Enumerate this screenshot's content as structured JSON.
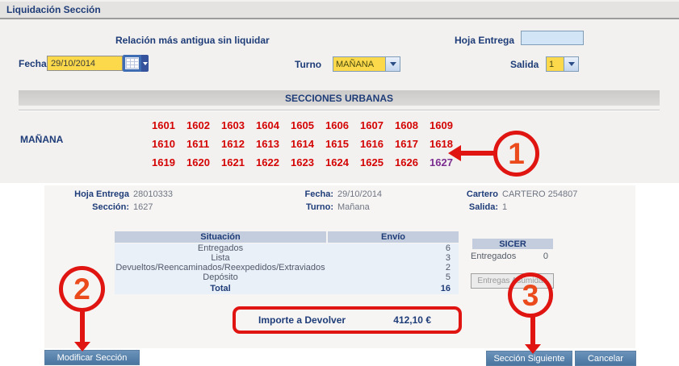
{
  "page": {
    "title": "Liquidación Sección"
  },
  "filters": {
    "relation_label": "Relación más antigua sin liquidar",
    "hoja_entrega_label": "Hoja Entrega",
    "hoja_entrega_value": "",
    "fecha_label": "Fecha",
    "fecha_value": "29/10/2014",
    "turno_label": "Turno",
    "turno_value": "MAÑANA",
    "salida_label": "Salida",
    "salida_value": "1"
  },
  "secciones": {
    "header": "SECCIONES URBANAS",
    "shift_label": "MAÑANA",
    "rows": [
      [
        "1601",
        "1602",
        "1603",
        "1604",
        "1605",
        "1606",
        "1607",
        "1608",
        "1609"
      ],
      [
        "1610",
        "1611",
        "1612",
        "1613",
        "1614",
        "1615",
        "1616",
        "1617",
        "1618"
      ],
      [
        "1619",
        "1620",
        "1621",
        "1622",
        "1623",
        "1624",
        "1625",
        "1626",
        "1627"
      ]
    ],
    "selected": "1627"
  },
  "detail": {
    "hoja_entrega_label": "Hoja Entrega",
    "hoja_entrega_value": "28010333",
    "seccion_label": "Sección:",
    "seccion_value": "1627",
    "fecha_label": "Fecha:",
    "fecha_value": "29/10/2014",
    "turno_label": "Turno:",
    "turno_value": "Mañana",
    "cartero_label": "Cartero",
    "cartero_value": "CARTERO 254807",
    "salida_label": "Salida:",
    "salida_value": "1"
  },
  "situacion_table": {
    "headers": [
      "Situación",
      "Envío"
    ],
    "rows": [
      {
        "label": "Entregados",
        "value": "6"
      },
      {
        "label": "Lista",
        "value": "3"
      },
      {
        "label": "Devueltos/Reencaminados/Reexpedidos/Extraviados",
        "value": "2"
      },
      {
        "label": "Depósito",
        "value": "5"
      }
    ],
    "total_label": "Total",
    "total_value": "16"
  },
  "sicer": {
    "header": "SICER",
    "entregados_label": "Entregados",
    "entregados_value": "0",
    "button_label": "Entregas Asumidas"
  },
  "importe": {
    "label": "Importe a Devolver",
    "value": "412,10 €"
  },
  "buttons": {
    "modificar": "Modificar Sección",
    "siguiente": "Sección Siguiente",
    "cancelar": "Cancelar"
  },
  "annotations": {
    "step1": "1",
    "step2": "2",
    "step3": "3"
  },
  "colors": {
    "accent_navy": "#1e3c78",
    "section_red": "#d40404",
    "visited_purple": "#7c2d90",
    "input_yellow": "#fbd94a",
    "button_blue": "#49759f",
    "annotation_red": "#e01410",
    "table_header": "#c4cddd",
    "table_row": "#eaf0f8"
  }
}
